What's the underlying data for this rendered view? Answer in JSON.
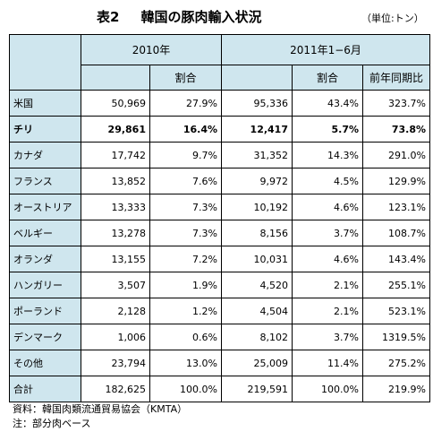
{
  "title": {
    "number": "表2",
    "text": "韓国の豚肉輸入状況"
  },
  "unit": "（単位:トン）",
  "headers": {
    "y2010": "2010年",
    "y2011": "2011年1−6月",
    "share": "割合",
    "yoy": "前年同期比"
  },
  "rows": [
    {
      "label": "米国",
      "v2010": "50,969",
      "s2010": "27.9%",
      "v2011": "95,336",
      "s2011": "43.4%",
      "yoy": "323.7%"
    },
    {
      "label": "チリ",
      "v2010": "29,861",
      "s2010": "16.4%",
      "v2011": "12,417",
      "s2011": "5.7%",
      "yoy": "73.8%"
    },
    {
      "label": "カナダ",
      "v2010": "17,742",
      "s2010": "9.7%",
      "v2011": "31,352",
      "s2011": "14.3%",
      "yoy": "291.0%"
    },
    {
      "label": "フランス",
      "v2010": "13,852",
      "s2010": "7.6%",
      "v2011": "9,972",
      "s2011": "4.5%",
      "yoy": "129.9%"
    },
    {
      "label": "オーストリア",
      "v2010": "13,333",
      "s2010": "7.3%",
      "v2011": "10,192",
      "s2011": "4.6%",
      "yoy": "123.1%"
    },
    {
      "label": "ベルギー",
      "v2010": "13,278",
      "s2010": "7.3%",
      "v2011": "8,156",
      "s2011": "3.7%",
      "yoy": "108.7%"
    },
    {
      "label": "オランダ",
      "v2010": "13,155",
      "s2010": "7.2%",
      "v2011": "10,031",
      "s2011": "4.6%",
      "yoy": "143.4%"
    },
    {
      "label": "ハンガリー",
      "v2010": "3,507",
      "s2010": "1.9%",
      "v2011": "4,520",
      "s2011": "2.1%",
      "yoy": "255.1%"
    },
    {
      "label": "ポーランド",
      "v2010": "2,128",
      "s2010": "1.2%",
      "v2011": "4,504",
      "s2011": "2.1%",
      "yoy": "523.1%"
    },
    {
      "label": "デンマーク",
      "v2010": "1,006",
      "s2010": "0.6%",
      "v2011": "8,102",
      "s2011": "3.7%",
      "yoy": "1319.5%"
    },
    {
      "label": "その他",
      "v2010": "23,794",
      "s2010": "13.0%",
      "v2011": "25,009",
      "s2011": "11.4%",
      "yoy": "275.2%"
    },
    {
      "label": "合計",
      "v2010": "182,625",
      "s2010": "100.0%",
      "v2011": "219,591",
      "s2011": "100.0%",
      "yoy": "219.9%"
    }
  ],
  "notes": {
    "source": "資料：韓国肉類流通貿易協会（KMTA）",
    "note": "注：部分肉ベース"
  },
  "colors": {
    "header_bg": "#cfe6ee"
  }
}
